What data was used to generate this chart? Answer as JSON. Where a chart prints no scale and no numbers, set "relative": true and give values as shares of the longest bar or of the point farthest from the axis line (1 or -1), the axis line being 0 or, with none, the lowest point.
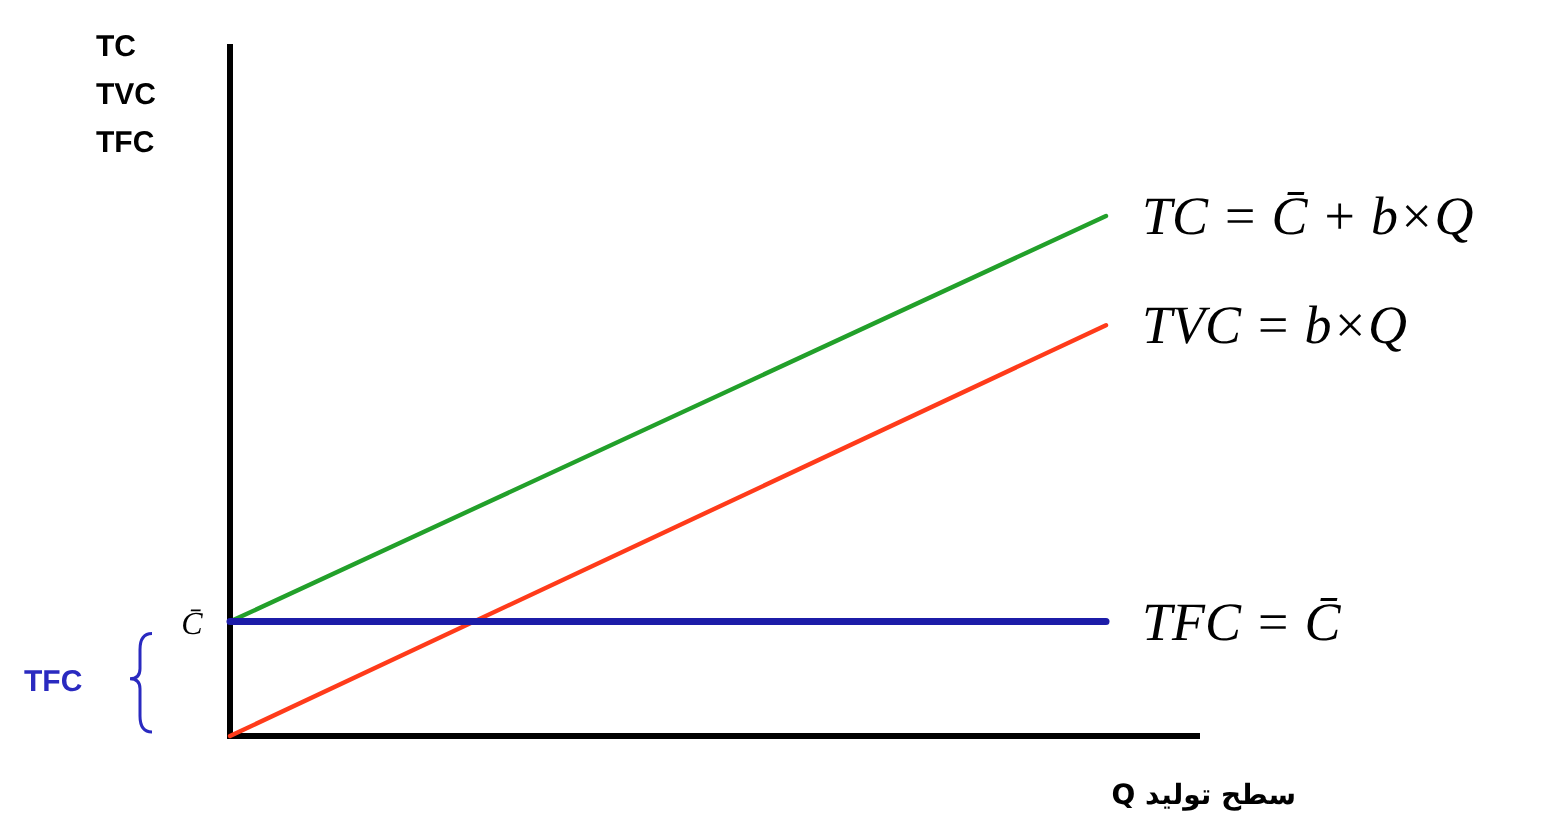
{
  "chart_data": {
    "type": "line",
    "relative": true,
    "ylabel": "TC\nTVC\nTFC",
    "xlabel": "سطح تولید Q",
    "categories": [
      null,
      null
    ],
    "legend": false,
    "grid": false,
    "marker": "none",
    "line_style": "solid",
    "series": [
      {
        "name": "TC = C̄ + b×Q",
        "color": "#22a02a",
        "values": [
          0.22,
          1
        ]
      },
      {
        "name": "TVC = b×Q",
        "color": "#ff3b1a",
        "values": [
          0,
          0.79
        ]
      },
      {
        "name": "TFC = C̄",
        "color": "#1c1ca8",
        "values": [
          0.22,
          0.22
        ]
      }
    ],
    "ref_lines": [
      {
        "axis": "y",
        "value": 0,
        "color": "#000000",
        "line_style": "solid"
      }
    ],
    "annotations": [
      "C̄",
      "TFC"
    ]
  }
}
